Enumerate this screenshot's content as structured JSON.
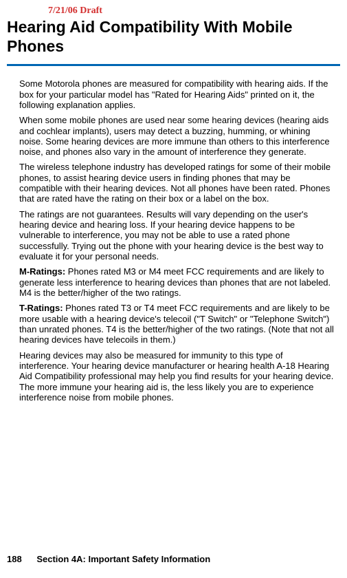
{
  "draft_label": "7/21/06 Draft",
  "title": "Hearing Aid Compatibility With Mobile Phones",
  "paragraphs": {
    "p1": "Some Motorola phones are measured for compatibility with hearing aids. If the box for your particular model has \"Rated for Hearing Aids\" printed on it, the following explanation applies.",
    "p2": "When some mobile phones are used near some hearing devices (hearing aids and cochlear implants), users may detect a buzzing, humming, or whining noise. Some hearing devices are more immune than others to this interference noise, and phones also vary in the amount of interference they generate.",
    "p3": "The wireless telephone industry has developed ratings for some of their mobile phones, to assist hearing device users in finding phones that may be compatible with their hearing devices. Not all phones have been rated. Phones that are rated have the rating on their box or a label on the box.",
    "p4": "The ratings are not guarantees. Results will vary depending on the user's hearing device and hearing loss. If your hearing device happens to be vulnerable to interference, you may not be able to use a rated phone successfully. Trying out the phone with your hearing device is the best way to evaluate it for your personal needs.",
    "p5_label": "M-Ratings:",
    "p5_text": " Phones rated M3 or M4 meet FCC requirements and are likely to generate less interference to hearing devices than phones that are not labeled. M4 is the better/higher of the two ratings.",
    "p6_label": "T-Ratings:",
    "p6_text": " Phones rated T3 or T4 meet FCC requirements and are likely to be more usable with a hearing device's telecoil (\"T Switch\" or \"Telephone Switch\") than unrated phones. T4 is the better/higher of the two ratings. (Note that not all hearing devices have telecoils in them.)",
    "p7": "Hearing devices may also be measured for immunity to this type of interference. Your hearing device manufacturer or hearing health A-18 Hearing Aid Compatibility professional may help you find results for your hearing device. The more immune your hearing aid is, the less likely you are to experience interference noise from mobile phones."
  },
  "footer": {
    "page_number": "188",
    "section_label": "Section 4A: Important Safety Information"
  },
  "colors": {
    "draft_red": "#d32f2f",
    "underline_blue": "#0066b3",
    "text_black": "#000000",
    "background": "#ffffff"
  },
  "typography": {
    "title_fontsize": 23,
    "body_fontsize": 13,
    "draft_fontsize": 14,
    "footer_fontsize": 13
  }
}
